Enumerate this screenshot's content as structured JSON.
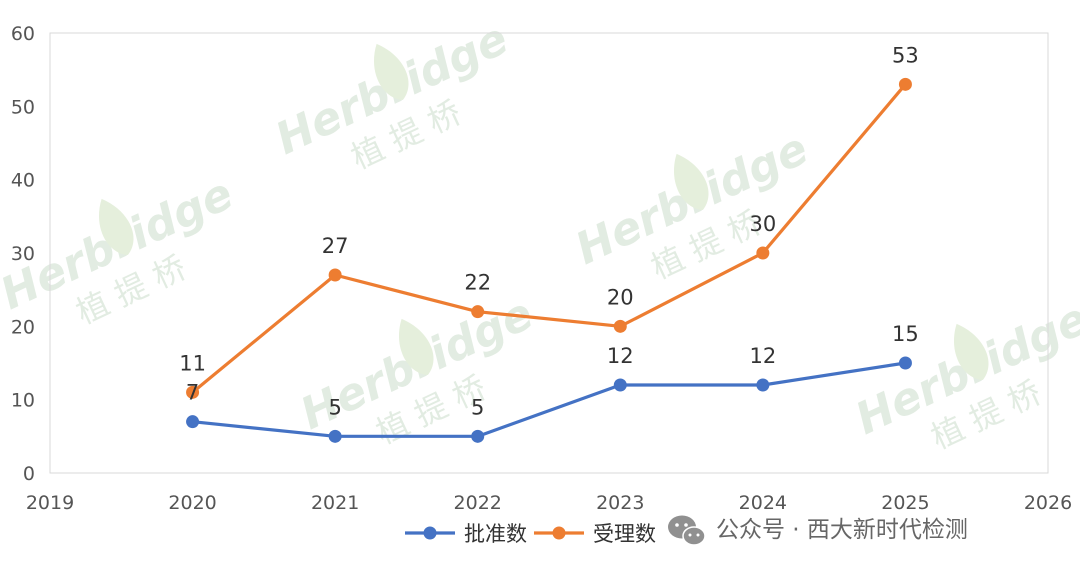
{
  "chart_data": {
    "type": "line",
    "x": [
      2020,
      2021,
      2022,
      2023,
      2024,
      2025
    ],
    "xlim": [
      2019,
      2026
    ],
    "x_ticks": [
      "2019",
      "2020",
      "2021",
      "2022",
      "2023",
      "2024",
      "2025",
      "2026"
    ],
    "ylim": [
      0,
      60
    ],
    "y_ticks": [
      "0",
      "10",
      "20",
      "30",
      "40",
      "50",
      "60"
    ],
    "grid": false,
    "legend_position": "bottom",
    "series": [
      {
        "name": "批准数",
        "color": "#4472c4",
        "values": [
          7,
          5,
          5,
          12,
          12,
          15
        ],
        "labels": [
          "7",
          "5",
          "5",
          "12",
          "12",
          "15"
        ]
      },
      {
        "name": "受理数",
        "color": "#ed7d31",
        "values": [
          11,
          27,
          22,
          20,
          30,
          53
        ],
        "labels": [
          "11",
          "27",
          "22",
          "20",
          "30",
          "53"
        ]
      }
    ]
  },
  "watermark": {
    "brand": "Herbridge",
    "chinese": "植 提 桥"
  },
  "credit": {
    "text": "公众号 · 西大新时代检测",
    "icon": "wechat-icon"
  }
}
